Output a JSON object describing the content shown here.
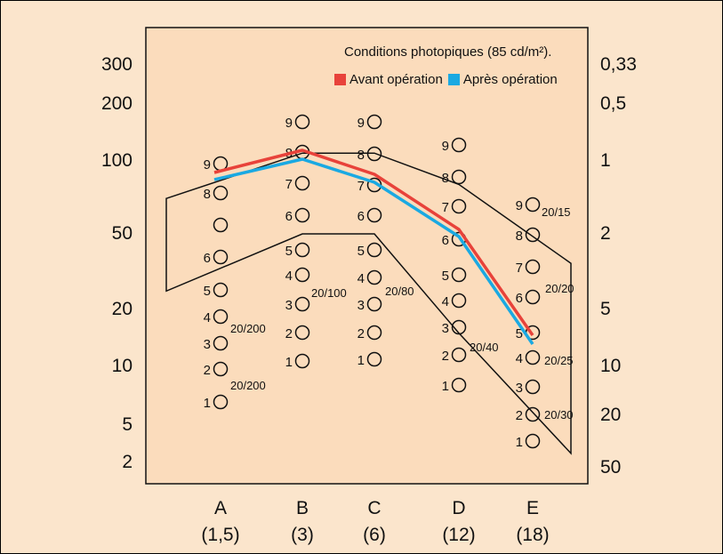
{
  "chart_data": {
    "type": "line",
    "title": "Conditions photopiques (85 cd/m²).",
    "categories": [
      "A",
      "B",
      "C",
      "D",
      "E"
    ],
    "category_sublabels": [
      "(1,5)",
      "(3)",
      "(6)",
      "(12)",
      "(18)"
    ],
    "left_axis_ticks": [
      "300",
      "200",
      "100",
      "50",
      "20",
      "10",
      "5",
      "2"
    ],
    "right_axis_ticks": [
      "0,33",
      "0,5",
      "1",
      "2",
      "5",
      "10",
      "20",
      "50"
    ],
    "colors": {
      "before": "#e8423a",
      "after": "#1aa9e2",
      "panel": "#fbe5cc",
      "ink": "#111111"
    },
    "series": [
      {
        "name": "Avant opération",
        "color": "#e8423a",
        "x": [
          "A",
          "B",
          "C",
          "D",
          "E"
        ],
        "values": [
          "9",
          "8",
          "7.3",
          "5.4",
          "4.7"
        ]
      },
      {
        "name": "Après opération",
        "color": "#1aa9e2",
        "x": [
          "A",
          "B",
          "C",
          "D",
          "E"
        ],
        "values": [
          "8.6",
          "7.8",
          "7",
          "5.2",
          "4.4"
        ]
      }
    ],
    "normal_band": {
      "upper": [
        "A 70",
        "B 110",
        "C 110",
        "D 80",
        "E 35"
      ],
      "lower": [
        "A 25",
        "B 50",
        "C 50",
        "D 15",
        "E 2.5"
      ]
    },
    "patches": [
      {
        "column": "A",
        "labels": [
          "9",
          "8",
          "",
          "6",
          "5",
          "4",
          "3",
          "2",
          "1"
        ]
      },
      {
        "column": "B",
        "labels": [
          "9",
          "8",
          "7",
          "6",
          "5",
          "4",
          "3",
          "2",
          "1"
        ]
      },
      {
        "column": "C",
        "labels": [
          "9",
          "8",
          "7",
          "6",
          "5",
          "4",
          "3",
          "2",
          "1"
        ]
      },
      {
        "column": "D",
        "labels": [
          "9",
          "8",
          "7",
          "6",
          "5",
          "4",
          "3",
          "2",
          "1"
        ]
      },
      {
        "column": "E",
        "labels": [
          "9",
          "8",
          "7",
          "6",
          "5",
          "4",
          "3",
          "2",
          "1"
        ]
      }
    ],
    "acuity_annotations": [
      {
        "column": "A",
        "text": "20/200"
      },
      {
        "column": "A",
        "text": "20/200"
      },
      {
        "column": "B",
        "text": "20/100"
      },
      {
        "column": "C",
        "text": "20/80"
      },
      {
        "column": "D",
        "text": "20/40"
      },
      {
        "column": "E",
        "text": "20/15"
      },
      {
        "column": "E",
        "text": "20/20"
      },
      {
        "column": "E",
        "text": "20/25"
      },
      {
        "column": "E",
        "text": "20/30"
      }
    ]
  }
}
